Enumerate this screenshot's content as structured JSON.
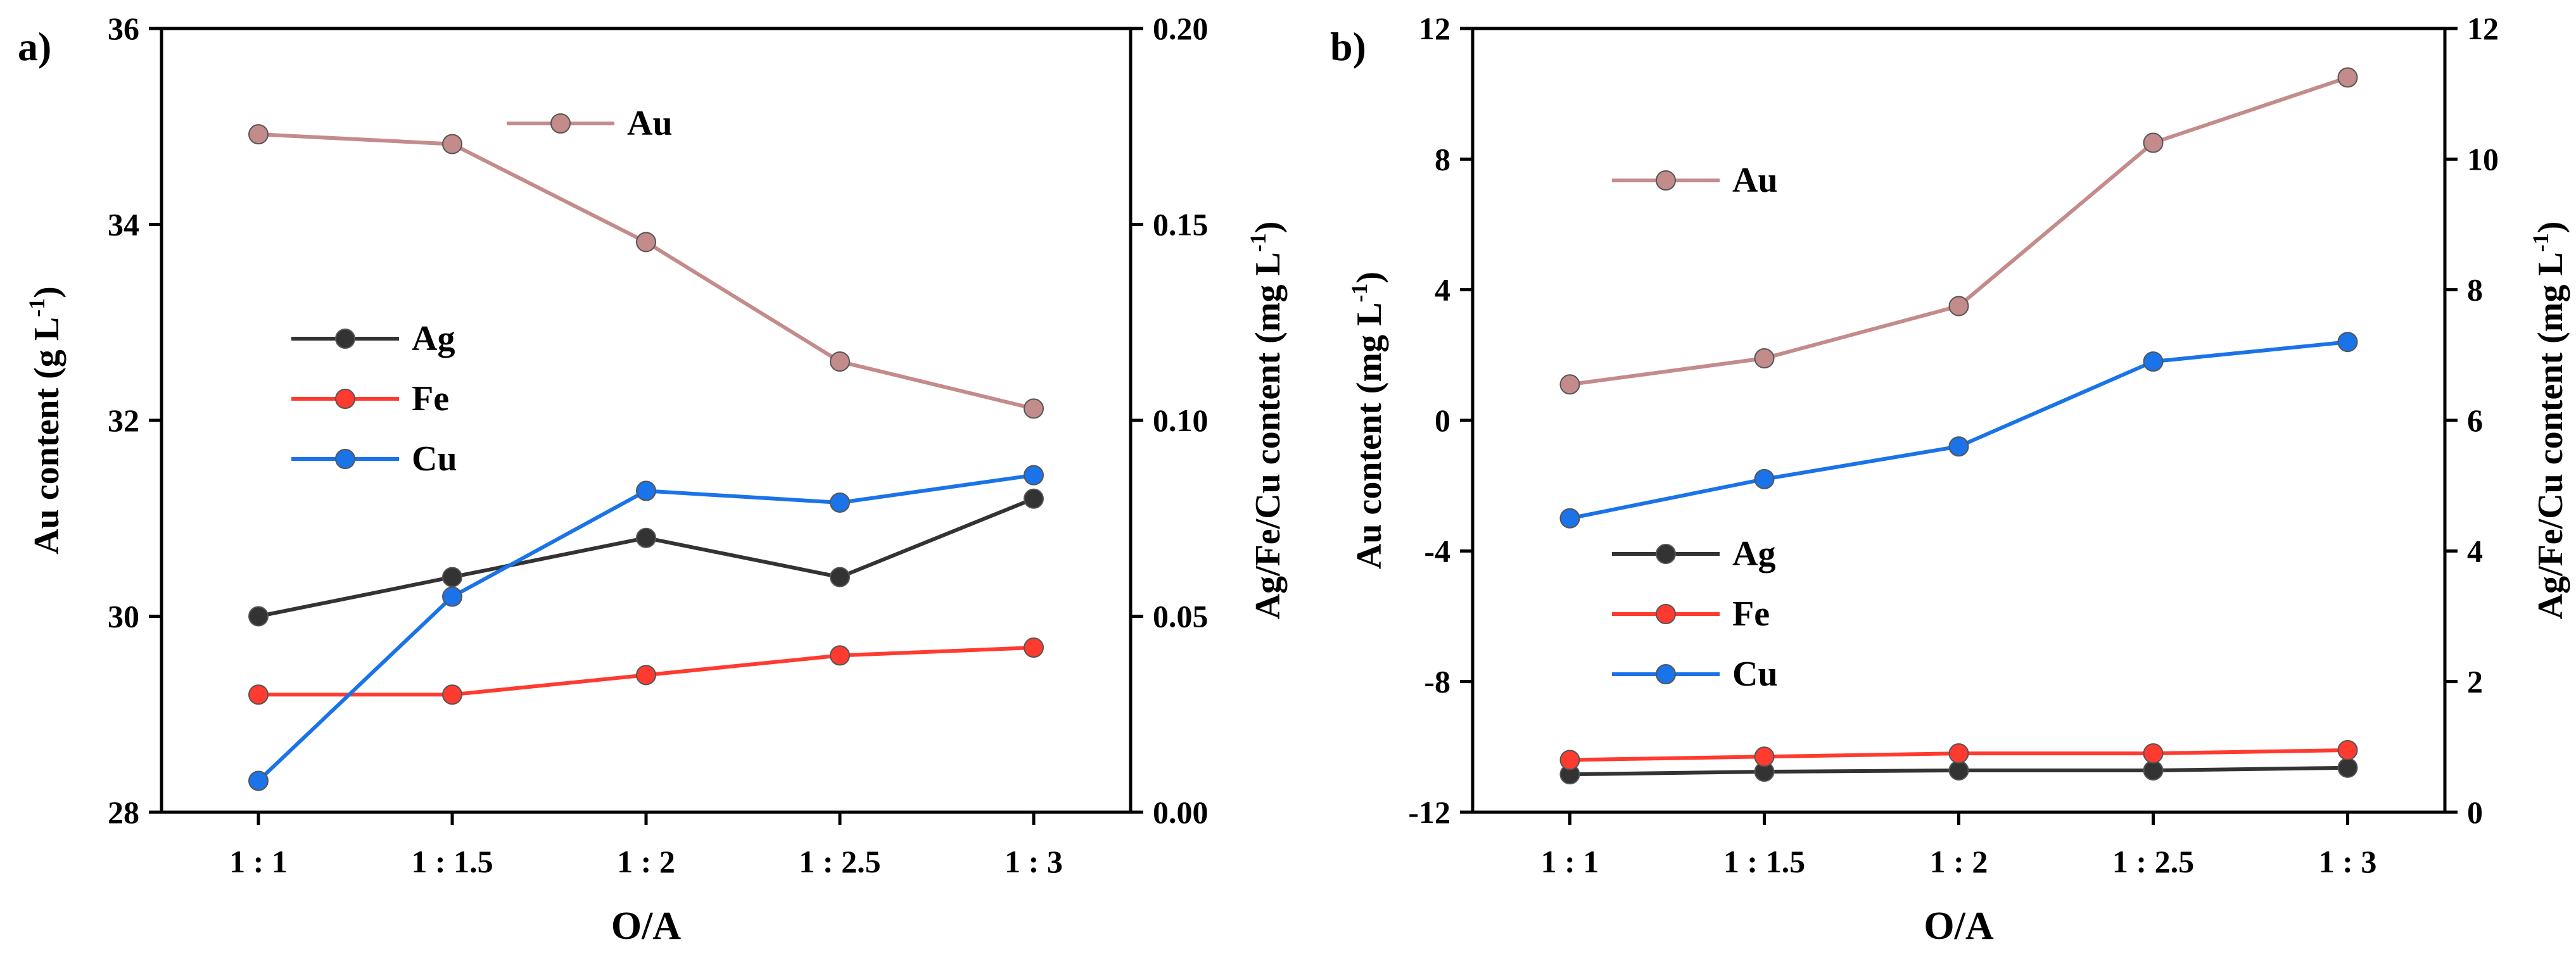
{
  "chart_data": [
    {
      "panel": "a)",
      "type": "line",
      "categories": [
        "1 : 1",
        "1 : 1.5",
        "1 : 2",
        "1 : 2.5",
        "1 : 3"
      ],
      "xlabel": "O/A",
      "ylabel_left": "Au content (g L",
      "ylabel_right": "Ag/Fe/Cu content (mg L",
      "ylabel_unit_sup": "-1",
      "ylim_left": [
        28,
        36
      ],
      "yticks_left": [
        28,
        30,
        32,
        34,
        36
      ],
      "ylim_right": [
        0,
        0.2
      ],
      "yticks_right": [
        "0.00",
        "0.05",
        "0.10",
        "0.15",
        "0.20"
      ],
      "series": [
        {
          "name": "Au",
          "axis": "left",
          "color": "#c48b8b",
          "values": [
            34.92,
            34.82,
            33.82,
            32.6,
            32.12
          ]
        },
        {
          "name": "Ag",
          "axis": "right",
          "color": "#333333",
          "values": [
            0.05,
            0.06,
            0.07,
            0.06,
            0.08
          ]
        },
        {
          "name": "Fe",
          "axis": "right",
          "color": "#ff3b30",
          "values": [
            0.03,
            0.03,
            0.035,
            0.04,
            0.042
          ]
        },
        {
          "name": "Cu",
          "axis": "right",
          "color": "#1a73e8",
          "values": [
            0.008,
            0.055,
            0.082,
            0.079,
            0.086
          ]
        }
      ]
    },
    {
      "panel": "b)",
      "type": "line",
      "categories": [
        "1 : 1",
        "1 : 1.5",
        "1 : 2",
        "1 : 2.5",
        "1 : 3"
      ],
      "xlabel": "O/A",
      "ylabel_left": "Au content (mg L",
      "ylabel_right": "Ag/Fe/Cu content (mg L",
      "ylabel_unit_sup": "-1",
      "ylim_left": [
        -12,
        12
      ],
      "yticks_left": [
        "-12",
        "-8",
        "-4",
        "0",
        "4",
        "8",
        "12"
      ],
      "ylim_right": [
        0,
        12
      ],
      "yticks_right": [
        "0",
        "2",
        "4",
        "6",
        "8",
        "10",
        "12"
      ],
      "series": [
        {
          "name": "Au",
          "axis": "left",
          "color": "#c48b8b",
          "values": [
            1.1,
            1.9,
            3.5,
            8.5,
            10.5
          ]
        },
        {
          "name": "Ag",
          "axis": "right",
          "color": "#333333",
          "values": [
            0.58,
            0.62,
            0.64,
            0.64,
            0.68
          ]
        },
        {
          "name": "Fe",
          "axis": "right",
          "color": "#ff3b30",
          "values": [
            0.8,
            0.85,
            0.9,
            0.9,
            0.95
          ]
        },
        {
          "name": "Cu",
          "axis": "right",
          "color": "#1a73e8",
          "values": [
            4.5,
            5.1,
            5.6,
            6.9,
            7.2
          ]
        }
      ]
    }
  ]
}
